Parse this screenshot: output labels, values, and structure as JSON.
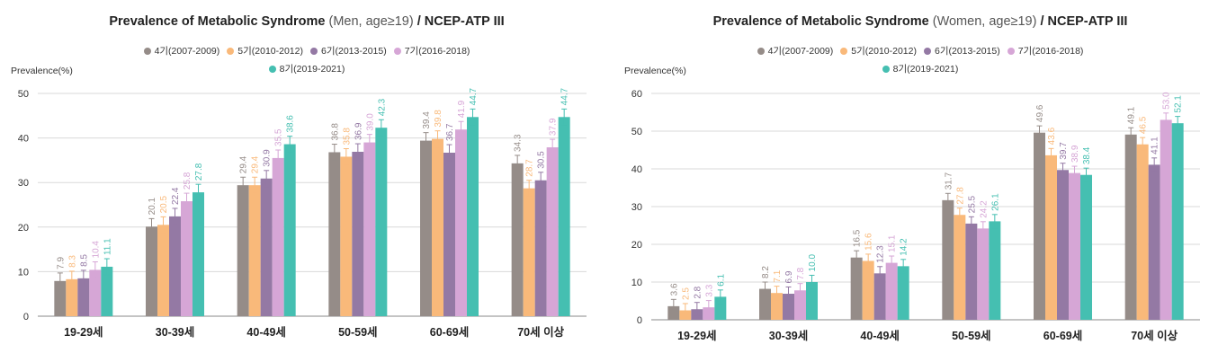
{
  "chart_data": [
    {
      "type": "bar",
      "title": "Prevalence of Metabolic Syndrome",
      "subtitle": "(Men, age≥19)",
      "title_suffix": "/ NCEP-ATP III",
      "ylabel": "Prevalence(%)",
      "ylim": [
        0,
        50
      ],
      "yticks": [
        "0",
        "10",
        "20",
        "30",
        "40",
        "50"
      ],
      "grid": true,
      "legend_position": "top-center",
      "categories": [
        "19-29세",
        "30-39세",
        "40-49세",
        "50-59세",
        "60-69세",
        "70세 이상"
      ],
      "series": [
        {
          "name": "4기(2007-2009)",
          "color": "#958c88",
          "values": [
            7.9,
            20.1,
            29.4,
            36.8,
            39.4,
            34.3
          ],
          "labels": [
            "7.9",
            "20.1",
            "29.4",
            "36.8",
            "39.4",
            "34.3"
          ]
        },
        {
          "name": "5기(2010-2012)",
          "color": "#f9b97a",
          "values": [
            8.3,
            20.5,
            29.4,
            35.8,
            39.8,
            28.7
          ],
          "labels": [
            "8.3",
            "20.5",
            "29.4",
            "35.8",
            "39.8",
            "28.7"
          ]
        },
        {
          "name": "6기(2013-2015)",
          "color": "#9479a4",
          "values": [
            8.5,
            22.4,
            30.9,
            36.9,
            36.7,
            30.5
          ],
          "labels": [
            "8.5",
            "22.4",
            "30.9",
            "36.9",
            "36.7",
            "30.5"
          ]
        },
        {
          "name": "7기(2016-2018)",
          "color": "#d6a6d6",
          "values": [
            10.4,
            25.8,
            35.5,
            39.0,
            41.9,
            37.9
          ],
          "labels": [
            "10.4",
            "25.8",
            "35.5",
            "39.0",
            "41.9",
            "37.9"
          ]
        },
        {
          "name": "8기(2019-2021)",
          "color": "#45bfb1",
          "values": [
            11.1,
            27.8,
            38.6,
            42.3,
            44.7,
            44.7
          ],
          "labels": [
            "11.1",
            "27.8",
            "38.6",
            "42.3",
            "44.7",
            "44.7"
          ]
        }
      ]
    },
    {
      "type": "bar",
      "title": "Prevalence of Metabolic Syndrome",
      "subtitle": "(Women, age≥19)",
      "title_suffix": "/ NCEP-ATP III",
      "ylabel": "Prevalence(%)",
      "ylim": [
        0,
        60
      ],
      "yticks": [
        "0",
        "10",
        "20",
        "30",
        "40",
        "50",
        "60"
      ],
      "grid": true,
      "legend_position": "top-center",
      "categories": [
        "19-29세",
        "30-39세",
        "40-49세",
        "50-59세",
        "60-69세",
        "70세 이상"
      ],
      "series": [
        {
          "name": "4기(2007-2009)",
          "color": "#958c88",
          "values": [
            3.6,
            8.2,
            16.5,
            31.7,
            49.6,
            49.1
          ],
          "labels": [
            "3.6",
            "8.2",
            "16.5",
            "31.7",
            "49.6",
            "49.1"
          ]
        },
        {
          "name": "5기(2010-2012)",
          "color": "#f9b97a",
          "values": [
            2.5,
            7.1,
            15.6,
            27.8,
            43.6,
            46.5
          ],
          "labels": [
            "2.5",
            "7.1",
            "15.6",
            "27.8",
            "43.6",
            "46.5"
          ]
        },
        {
          "name": "6기(2013-2015)",
          "color": "#9479a4",
          "values": [
            2.8,
            6.9,
            12.3,
            25.5,
            39.7,
            41.1
          ],
          "labels": [
            "2.8",
            "6.9",
            "12.3",
            "25.5",
            "39.7",
            "41.1"
          ]
        },
        {
          "name": "7기(2016-2018)",
          "color": "#d6a6d6",
          "values": [
            3.3,
            7.8,
            15.1,
            24.2,
            38.9,
            53.0
          ],
          "labels": [
            "3.3",
            "7.8",
            "15.1",
            "24.2",
            "38.9",
            "53.0"
          ]
        },
        {
          "name": "8기(2019-2021)",
          "color": "#45bfb1",
          "values": [
            6.1,
            10.0,
            14.2,
            26.1,
            38.4,
            52.1
          ],
          "labels": [
            "6.1",
            "10.0",
            "14.2",
            "26.1",
            "38.4",
            "52.1"
          ]
        }
      ]
    }
  ]
}
